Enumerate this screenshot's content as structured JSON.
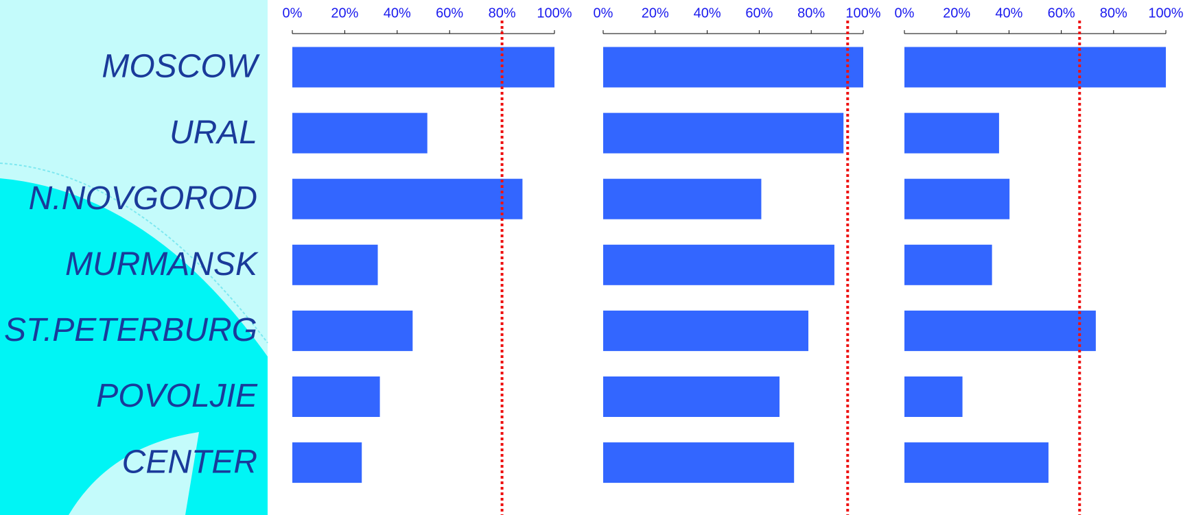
{
  "chart_data": [
    {
      "type": "bar",
      "orientation": "horizontal",
      "categories": [
        "MOSCOW",
        "URAL",
        "N.NOVGOROD",
        "MURMANSK",
        "ST.PETERBURG",
        "POVOLJIE",
        "CENTER"
      ],
      "values": [
        100,
        51.5,
        87.8,
        32.6,
        45.9,
        33.4,
        26.5
      ],
      "color": "#3366ff",
      "xlim": [
        0,
        100
      ],
      "xticks": [
        {
          "value": 0,
          "label": "0%"
        },
        {
          "value": 20,
          "label": "20%"
        },
        {
          "value": 40,
          "label": "40%"
        },
        {
          "value": 60,
          "label": "60%"
        },
        {
          "value": 80,
          "label": "80%"
        },
        {
          "value": 100,
          "label": "100%"
        }
      ],
      "reference_line": 80,
      "reference_color": "#ee1111"
    },
    {
      "type": "bar",
      "orientation": "horizontal",
      "values": [
        100,
        92.4,
        60.8,
        88.9,
        78.9,
        67.8,
        73.4
      ],
      "color": "#3366ff",
      "xlim": [
        0,
        100
      ],
      "xticks": [
        {
          "value": 0,
          "label": "0%"
        },
        {
          "value": 20,
          "label": "20%"
        },
        {
          "value": 40,
          "label": "40%"
        },
        {
          "value": 60,
          "label": "60%"
        },
        {
          "value": 80,
          "label": "80%"
        },
        {
          "value": 100,
          "label": "100%"
        }
      ],
      "reference_line": 94,
      "reference_color": "#ee1111"
    },
    {
      "type": "bar",
      "orientation": "horizontal",
      "values": [
        100,
        36.2,
        40.2,
        33.5,
        73.2,
        22.2,
        55.1
      ],
      "color": "#3366ff",
      "xlim": [
        0,
        100
      ],
      "xticks": [
        {
          "value": 0,
          "label": "0%"
        },
        {
          "value": 20,
          "label": "20%"
        },
        {
          "value": 40,
          "label": "40%"
        },
        {
          "value": 60,
          "label": "60%"
        },
        {
          "value": 80,
          "label": "80%"
        },
        {
          "value": 100,
          "label": "100%"
        }
      ],
      "reference_line": 67,
      "reference_color": "#ee1111"
    }
  ]
}
